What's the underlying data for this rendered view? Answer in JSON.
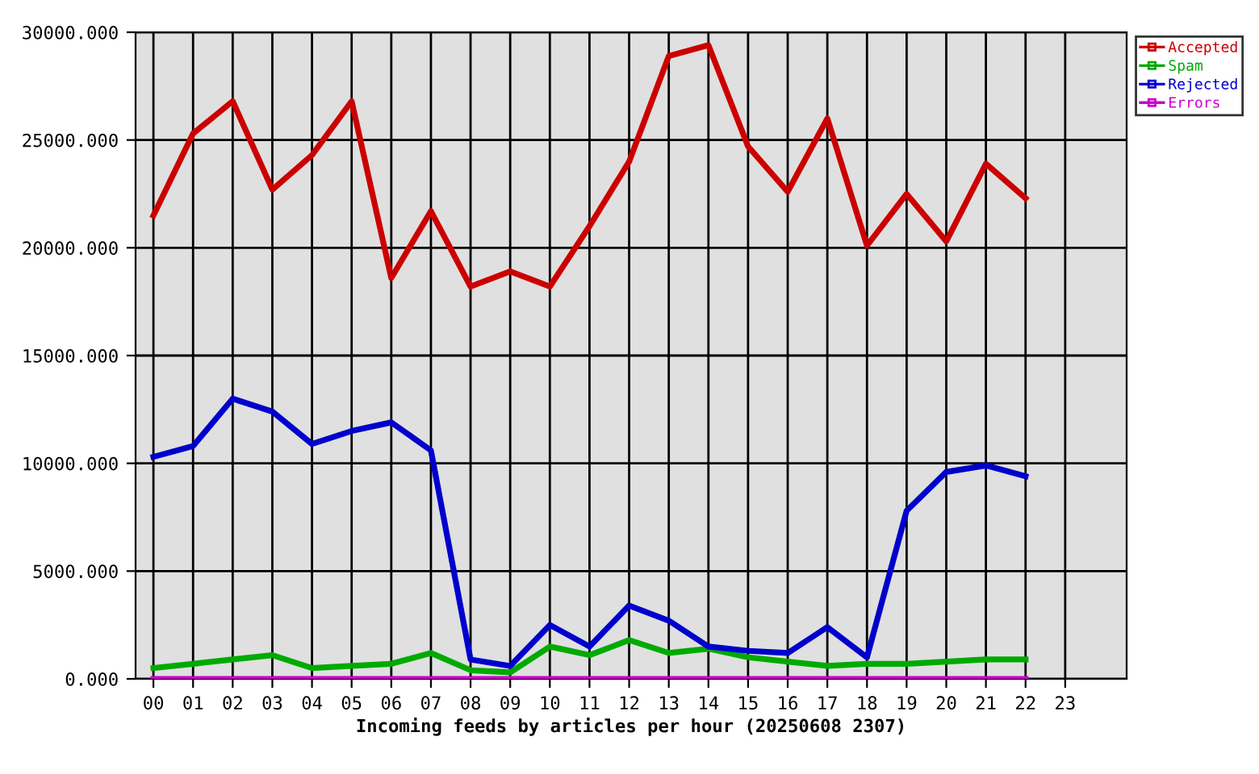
{
  "chart_data": {
    "type": "line",
    "xlabel": "Incoming feeds by articles per hour (20250608 2307)",
    "categories": [
      "00",
      "01",
      "02",
      "03",
      "04",
      "05",
      "06",
      "07",
      "08",
      "09",
      "10",
      "11",
      "12",
      "13",
      "14",
      "15",
      "16",
      "17",
      "18",
      "19",
      "20",
      "21",
      "22",
      "23"
    ],
    "series": [
      {
        "name": "Accepted",
        "color": "#cc0000",
        "values": [
          21500,
          25300,
          26800,
          22700,
          24300,
          26800,
          18600,
          21700,
          18200,
          18900,
          18200,
          21000,
          24000,
          28900,
          29400,
          24700,
          22600,
          26000,
          20100,
          22500,
          20300,
          23900,
          22300,
          null
        ]
      },
      {
        "name": "Spam",
        "color": "#00aa00",
        "values": [
          500,
          700,
          900,
          1100,
          500,
          600,
          700,
          1200,
          400,
          300,
          1500,
          1100,
          1800,
          1200,
          1400,
          1000,
          800,
          600,
          700,
          700,
          800,
          900,
          900,
          null
        ]
      },
      {
        "name": "Rejected",
        "color": "#0000cc",
        "values": [
          10300,
          10800,
          13000,
          12400,
          10900,
          11500,
          11900,
          10600,
          900,
          600,
          2500,
          1500,
          3400,
          2700,
          1500,
          1300,
          1200,
          2400,
          1000,
          7800,
          9600,
          9900,
          9400,
          null
        ]
      },
      {
        "name": "Errors",
        "color": "#cc00cc",
        "values": [
          0,
          0,
          0,
          0,
          0,
          0,
          0,
          0,
          0,
          0,
          0,
          0,
          0,
          0,
          0,
          0,
          0,
          0,
          0,
          0,
          0,
          0,
          0,
          null
        ]
      }
    ],
    "ylim": [
      0,
      30000
    ],
    "yticks": [
      {
        "value": 0,
        "label": "0.000"
      },
      {
        "value": 5000,
        "label": "5000.000"
      },
      {
        "value": 10000,
        "label": "10000.000"
      },
      {
        "value": 15000,
        "label": "15000.000"
      },
      {
        "value": 20000,
        "label": "20000.000"
      },
      {
        "value": 25000,
        "label": "25000.000"
      },
      {
        "value": 30000,
        "label": "30000.000"
      }
    ],
    "grid": true,
    "legend": "top right",
    "marker": "none",
    "line_style": "solid"
  }
}
